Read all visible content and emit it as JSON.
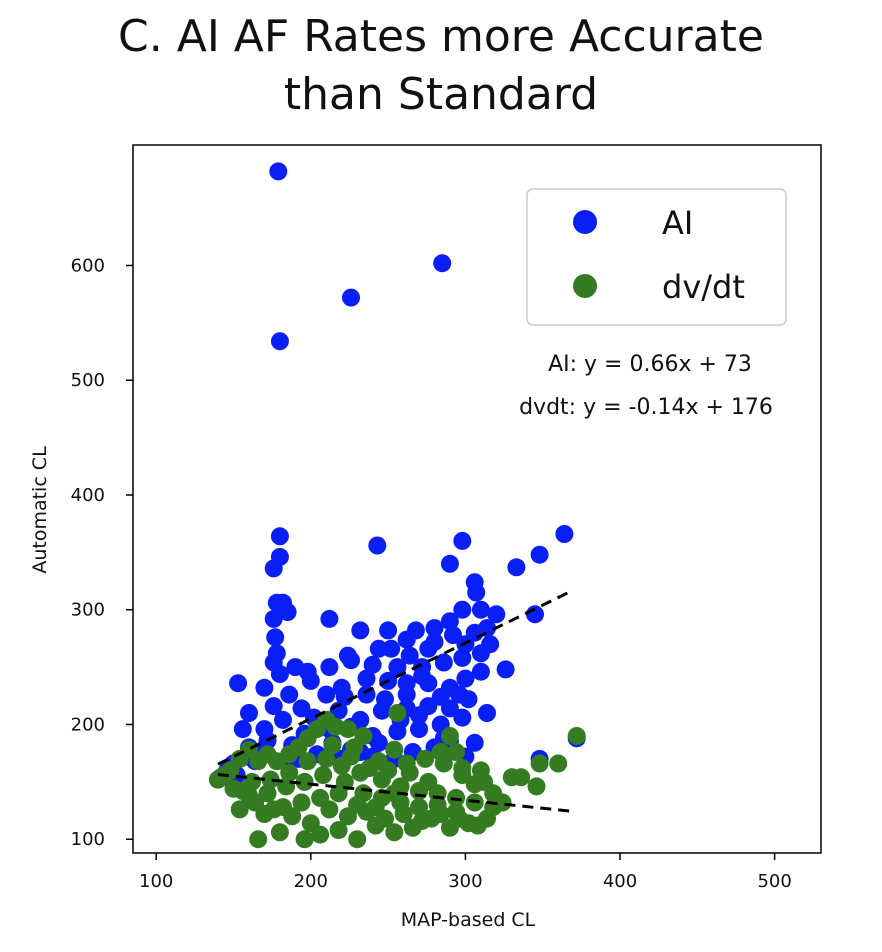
{
  "chart_data": {
    "type": "scatter",
    "title_lines": [
      "C. AI AF Rates more Accurate",
      "than Standard"
    ],
    "xlabel": "MAP-based CL",
    "ylabel": "Automatic CL",
    "xlim": [
      85,
      530
    ],
    "ylim": [
      88,
      705
    ],
    "xticks": [
      100,
      200,
      300,
      400,
      500
    ],
    "yticks": [
      100,
      200,
      300,
      400,
      500,
      600
    ],
    "grid": false,
    "legend_position": "top-right",
    "colors": {
      "AI": "#0a1ff5",
      "dvdt": "#347b22",
      "fit": "#000000"
    },
    "series": [
      {
        "name": "AI",
        "color": "#0a1ff5",
        "points": [
          [
            179,
            682
          ],
          [
            285,
            602
          ],
          [
            226,
            572
          ],
          [
            180,
            534
          ],
          [
            364,
            366
          ],
          [
            180,
            364
          ],
          [
            298,
            360
          ],
          [
            180,
            346
          ],
          [
            243,
            356
          ],
          [
            290,
            340
          ],
          [
            348,
            348
          ],
          [
            176,
            336
          ],
          [
            333,
            337
          ],
          [
            306,
            324
          ],
          [
            178,
            306
          ],
          [
            182,
            306
          ],
          [
            307,
            315
          ],
          [
            185,
            298
          ],
          [
            310,
            300
          ],
          [
            298,
            300
          ],
          [
            320,
            296
          ],
          [
            345,
            296
          ],
          [
            212,
            292
          ],
          [
            290,
            290
          ],
          [
            280,
            284
          ],
          [
            268,
            282
          ],
          [
            250,
            282
          ],
          [
            232,
            282
          ],
          [
            176,
            292
          ],
          [
            177,
            276
          ],
          [
            178,
            262
          ],
          [
            176,
            254
          ],
          [
            180,
            244
          ],
          [
            190,
            250
          ],
          [
            198,
            246
          ],
          [
            212,
            250
          ],
          [
            226,
            256
          ],
          [
            240,
            252
          ],
          [
            256,
            250
          ],
          [
            272,
            250
          ],
          [
            286,
            254
          ],
          [
            298,
            258
          ],
          [
            310,
            262
          ],
          [
            316,
            270
          ],
          [
            262,
            274
          ],
          [
            276,
            266
          ],
          [
            306,
            280
          ],
          [
            252,
            266
          ],
          [
            244,
            266
          ],
          [
            224,
            260
          ],
          [
            200,
            238
          ],
          [
            186,
            226
          ],
          [
            170,
            232
          ],
          [
            176,
            216
          ],
          [
            194,
            214
          ],
          [
            210,
            226
          ],
          [
            220,
            232
          ],
          [
            236,
            226
          ],
          [
            250,
            238
          ],
          [
            262,
            236
          ],
          [
            276,
            236
          ],
          [
            290,
            232
          ],
          [
            300,
            240
          ],
          [
            310,
            246
          ],
          [
            326,
            248
          ],
          [
            153,
            236
          ],
          [
            160,
            210
          ],
          [
            156,
            196
          ],
          [
            170,
            196
          ],
          [
            182,
            204
          ],
          [
            202,
            206
          ],
          [
            218,
            212
          ],
          [
            232,
            204
          ],
          [
            246,
            212
          ],
          [
            262,
            214
          ],
          [
            276,
            216
          ],
          [
            290,
            214
          ],
          [
            302,
            222
          ],
          [
            314,
            210
          ],
          [
            298,
            206
          ],
          [
            284,
            200
          ],
          [
            270,
            196
          ],
          [
            256,
            194
          ],
          [
            240,
            190
          ],
          [
            226,
            198
          ],
          [
            212,
            196
          ],
          [
            196,
            192
          ],
          [
            188,
            182
          ],
          [
            172,
            186
          ],
          [
            160,
            180
          ],
          [
            150,
            166
          ],
          [
            146,
            160
          ],
          [
            142,
            154
          ],
          [
            140,
            152
          ],
          [
            152,
            156
          ],
          [
            164,
            168
          ],
          [
            280,
            180
          ],
          [
            290,
            186
          ],
          [
            306,
            184
          ],
          [
            300,
            172
          ],
          [
            266,
            176
          ],
          [
            254,
            170
          ],
          [
            240,
            172
          ],
          [
            226,
            178
          ],
          [
            348,
            170
          ],
          [
            372,
            188
          ],
          [
            222,
            224
          ],
          [
            236,
            240
          ],
          [
            248,
            222
          ],
          [
            262,
            226
          ],
          [
            272,
            242
          ],
          [
            284,
            224
          ],
          [
            296,
            226
          ],
          [
            264,
            260
          ],
          [
            280,
            272
          ],
          [
            292,
            278
          ],
          [
            300,
            270
          ],
          [
            314,
            284
          ],
          [
            258,
            204
          ],
          [
            244,
            184
          ],
          [
            232,
            176
          ],
          [
            220,
            170
          ],
          [
            214,
            184
          ],
          [
            204,
            174
          ],
          [
            192,
            170
          ],
          [
            184,
            168
          ],
          [
            168,
            176
          ],
          [
            158,
            172
          ],
          [
            270,
            208
          ],
          [
            286,
            188
          ]
        ]
      },
      {
        "name": "dv/dt",
        "color": "#347b22",
        "points": [
          [
            372,
            190
          ],
          [
            360,
            166
          ],
          [
            348,
            166
          ],
          [
            346,
            146
          ],
          [
            336,
            154
          ],
          [
            330,
            154
          ],
          [
            324,
            132
          ],
          [
            318,
            140
          ],
          [
            312,
            150
          ],
          [
            306,
            148
          ],
          [
            298,
            162
          ],
          [
            294,
            176
          ],
          [
            290,
            190
          ],
          [
            284,
            176
          ],
          [
            276,
            150
          ],
          [
            264,
            158
          ],
          [
            254,
            178
          ],
          [
            256,
            210
          ],
          [
            244,
            168
          ],
          [
            234,
            190
          ],
          [
            228,
            180
          ],
          [
            224,
            196
          ],
          [
            216,
            198
          ],
          [
            210,
            204
          ],
          [
            204,
            196
          ],
          [
            198,
            188
          ],
          [
            192,
            180
          ],
          [
            186,
            174
          ],
          [
            178,
            168
          ],
          [
            172,
            174
          ],
          [
            166,
            168
          ],
          [
            160,
            178
          ],
          [
            154,
            170
          ],
          [
            148,
            160
          ],
          [
            144,
            156
          ],
          [
            140,
            152
          ],
          [
            150,
            144
          ],
          [
            160,
            138
          ],
          [
            172,
            140
          ],
          [
            184,
            146
          ],
          [
            196,
            150
          ],
          [
            208,
            156
          ],
          [
            220,
            164
          ],
          [
            232,
            158
          ],
          [
            246,
            152
          ],
          [
            258,
            146
          ],
          [
            270,
            142
          ],
          [
            282,
            140
          ],
          [
            294,
            136
          ],
          [
            306,
            132
          ],
          [
            318,
            128
          ],
          [
            308,
            112
          ],
          [
            296,
            118
          ],
          [
            284,
            122
          ],
          [
            272,
            116
          ],
          [
            260,
            122
          ],
          [
            248,
            118
          ],
          [
            236,
            124
          ],
          [
            224,
            120
          ],
          [
            212,
            126
          ],
          [
            200,
            114
          ],
          [
            188,
            120
          ],
          [
            176,
            126
          ],
          [
            164,
            132
          ],
          [
            154,
            126
          ],
          [
            166,
            100
          ],
          [
            180,
            106
          ],
          [
            196,
            100
          ],
          [
            206,
            104
          ],
          [
            218,
            108
          ],
          [
            230,
            100
          ],
          [
            242,
            112
          ],
          [
            254,
            106
          ],
          [
            266,
            110
          ],
          [
            278,
            118
          ],
          [
            290,
            110
          ],
          [
            302,
            114
          ],
          [
            314,
            118
          ],
          [
            214,
            182
          ],
          [
            226,
            172
          ],
          [
            238,
            162
          ],
          [
            250,
            160
          ],
          [
            262,
            166
          ],
          [
            274,
            170
          ],
          [
            286,
            166
          ],
          [
            298,
            156
          ],
          [
            310,
            160
          ],
          [
            186,
            158
          ],
          [
            174,
            152
          ],
          [
            162,
            150
          ],
          [
            198,
            168
          ],
          [
            210,
            170
          ],
          [
            222,
            150
          ],
          [
            234,
            140
          ],
          [
            246,
            136
          ],
          [
            258,
            132
          ],
          [
            270,
            128
          ],
          [
            282,
            130
          ],
          [
            294,
            124
          ],
          [
            206,
            136
          ],
          [
            194,
            132
          ],
          [
            182,
            128
          ],
          [
            170,
            122
          ],
          [
            156,
            142
          ],
          [
            218,
            140
          ],
          [
            230,
            130
          ],
          [
            242,
            128
          ],
          [
            254,
            140
          ]
        ]
      }
    ],
    "fits": [
      {
        "name": "AI",
        "slope": 0.66,
        "intercept": 73,
        "x_range": [
          140,
          370
        ]
      },
      {
        "name": "dvdt",
        "slope": -0.14,
        "intercept": 176,
        "x_range": [
          140,
          370
        ]
      }
    ],
    "legend": [
      {
        "label": "AI",
        "color": "#0a1ff5"
      },
      {
        "label": "dv/dt",
        "color": "#347b22"
      }
    ],
    "annotations": [
      "AI: y = 0.66x + 73",
      "dvdt: y = -0.14x + 176"
    ]
  }
}
